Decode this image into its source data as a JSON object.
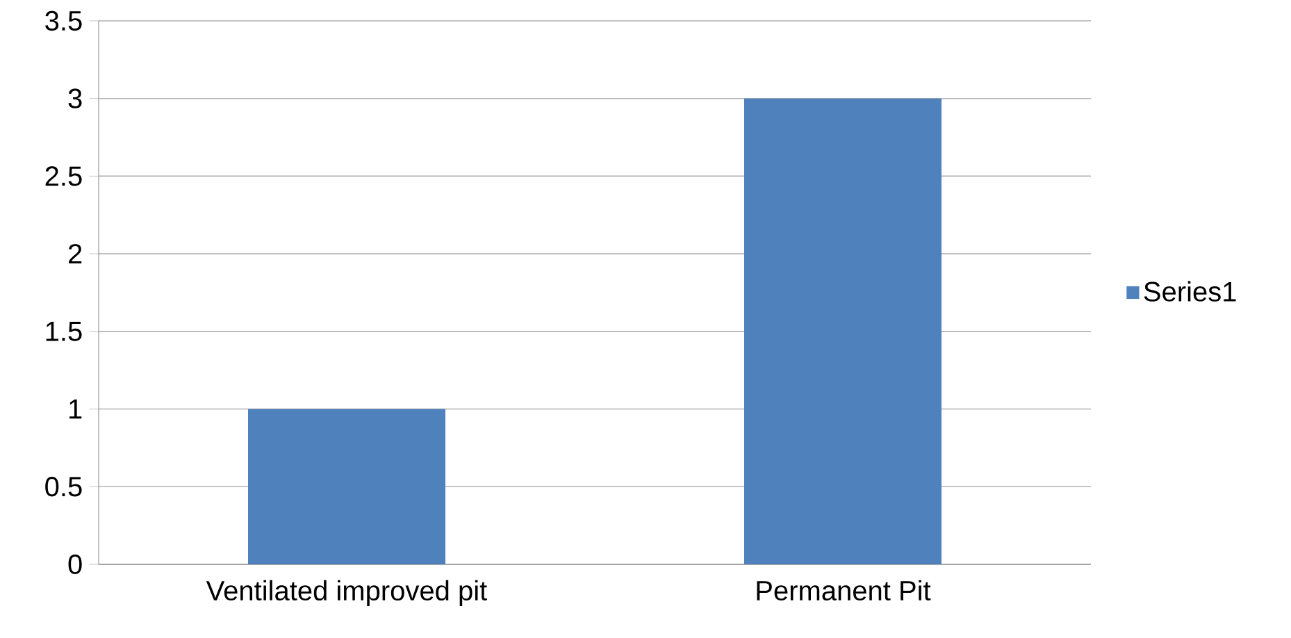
{
  "chart_data": {
    "type": "bar",
    "categories": [
      "Ventilated improved pit",
      "Permanent Pit"
    ],
    "series": [
      {
        "name": "Series1",
        "color": "#4f81bd",
        "values": [
          1,
          3
        ]
      }
    ],
    "ylim": [
      0,
      3.5
    ],
    "yticks": [
      0,
      0.5,
      1,
      1.5,
      2,
      2.5,
      3,
      3.5
    ],
    "grid": "y",
    "legend": "right"
  }
}
